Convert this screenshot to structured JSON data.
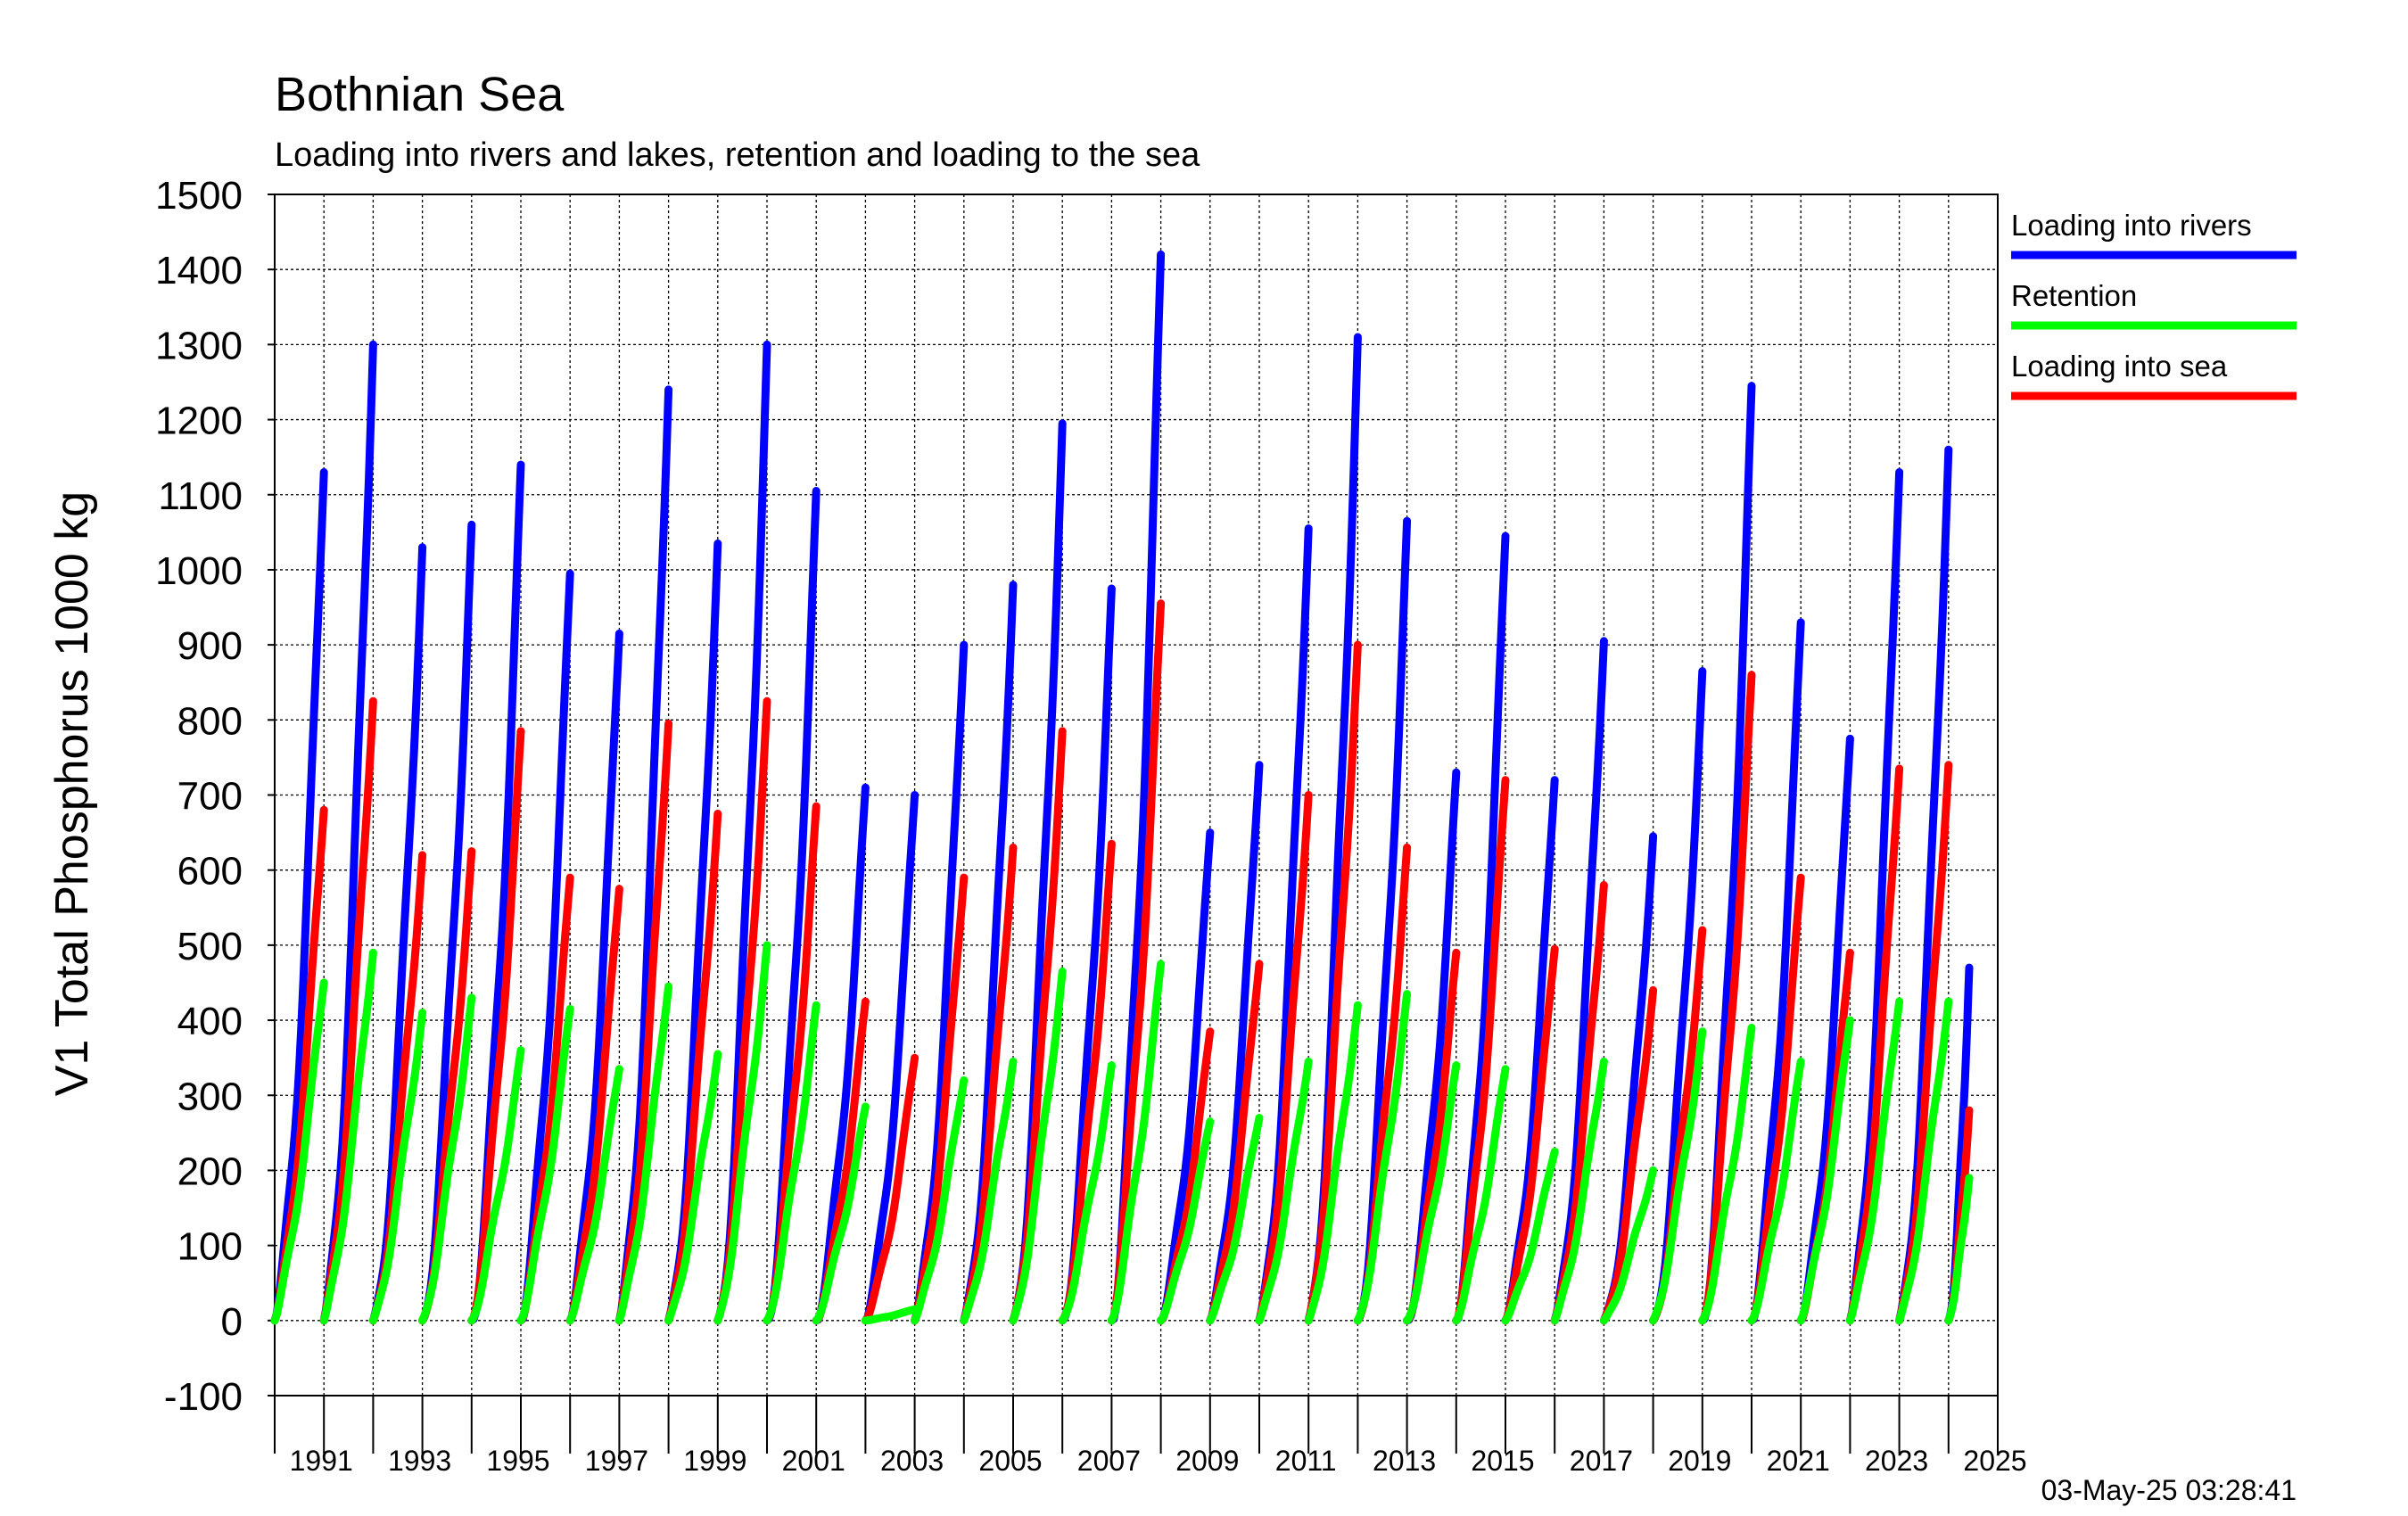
{
  "header": {
    "title": "Bothnian Sea",
    "subtitle": "Loading into rivers and lakes, retention and loading to the sea"
  },
  "timestamp": "03-May-25 03:28:41",
  "chart_data": {
    "type": "line",
    "title": "Bothnian Sea",
    "subtitle": "Loading into rivers and lakes, retention and loading to the sea",
    "xlabel": "",
    "ylabel": "V1 Total Phosphorus 1000 kg",
    "xlim": [
      1990,
      2025
    ],
    "ylim": [
      -100,
      1500
    ],
    "y_ticks": [
      -100,
      0,
      100,
      200,
      300,
      400,
      500,
      600,
      700,
      800,
      900,
      1000,
      1100,
      1200,
      1300,
      1400,
      1500
    ],
    "x_tick_labels": [
      "1991",
      "1993",
      "1995",
      "1997",
      "1999",
      "2001",
      "2003",
      "2005",
      "2007",
      "2009",
      "2011",
      "2013",
      "2015",
      "2017",
      "2019",
      "2021",
      "2023",
      "2025"
    ],
    "grid": true,
    "legend_position": "right",
    "years": [
      1990,
      1991,
      1992,
      1993,
      1994,
      1995,
      1996,
      1997,
      1998,
      1999,
      2000,
      2001,
      2002,
      2003,
      2004,
      2005,
      2006,
      2007,
      2008,
      2009,
      2010,
      2011,
      2012,
      2013,
      2014,
      2015,
      2016,
      2017,
      2018,
      2019,
      2020,
      2021,
      2022,
      2023,
      2024
    ],
    "partial_last_year_fraction": 0.42,
    "series": [
      {
        "name": "Loading into rivers",
        "color": "#0000ff",
        "annual_cumulative_totals": [
          1130,
          1300,
          1030,
          1060,
          1140,
          995,
          915,
          1240,
          1035,
          1300,
          1105,
          710,
          700,
          900,
          980,
          1195,
          975,
          1420,
          650,
          740,
          1055,
          1310,
          1065,
          730,
          1045,
          720,
          905,
          645,
          865,
          1245,
          930,
          775,
          1130,
          1160,
          470
        ]
      },
      {
        "name": "Retention",
        "color": "#00ff00",
        "annual_cumulative_totals": [
          450,
          490,
          410,
          430,
          360,
          415,
          335,
          445,
          355,
          500,
          420,
          285,
          15,
          320,
          345,
          465,
          340,
          475,
          265,
          270,
          345,
          420,
          435,
          340,
          335,
          225,
          345,
          200,
          385,
          390,
          345,
          400,
          425,
          425,
          190
        ]
      },
      {
        "name": "Loading into sea",
        "color": "#ff0000",
        "annual_cumulative_totals": [
          680,
          825,
          620,
          625,
          785,
          590,
          575,
          795,
          675,
          825,
          685,
          425,
          350,
          590,
          630,
          785,
          635,
          955,
          385,
          475,
          700,
          900,
          630,
          490,
          720,
          495,
          580,
          440,
          520,
          860,
          590,
          490,
          735,
          740,
          280
        ]
      }
    ]
  }
}
